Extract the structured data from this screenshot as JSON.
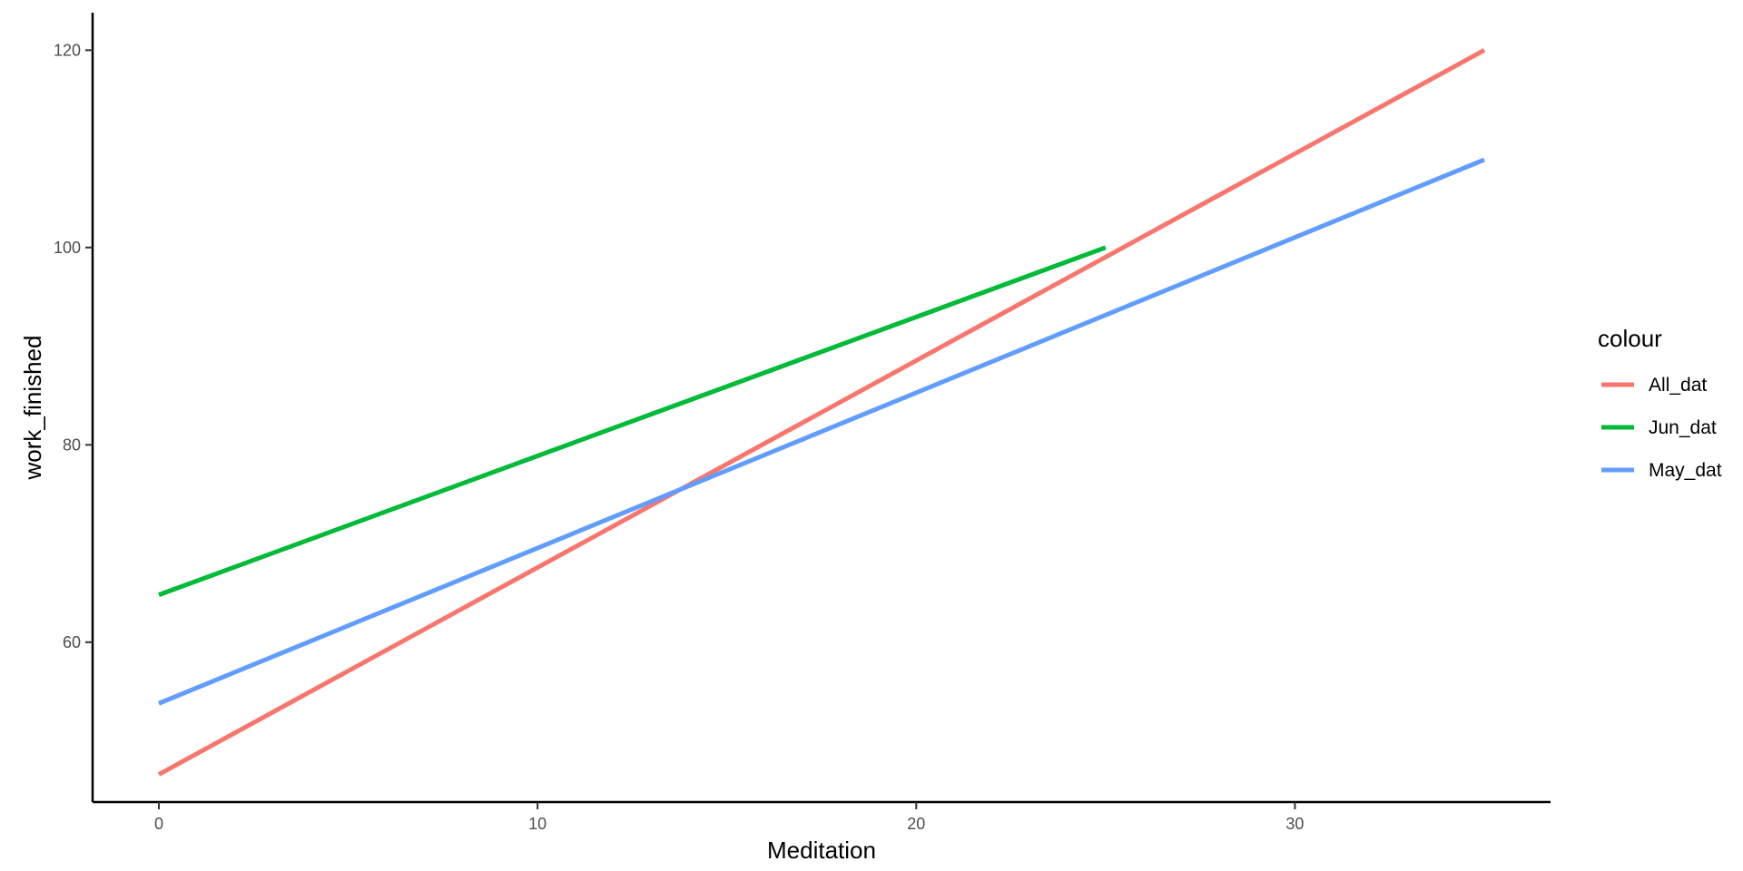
{
  "chart_data": {
    "type": "line",
    "xlabel": "Meditation",
    "ylabel": "work_finished",
    "xlim": [
      -1.75,
      36.75
    ],
    "ylim": [
      43.8,
      123.8
    ],
    "x_ticks": [
      0,
      10,
      20,
      30
    ],
    "y_ticks": [
      60,
      80,
      100,
      120
    ],
    "grid": false,
    "legend": {
      "title": "colour",
      "position": "right"
    },
    "series": [
      {
        "name": "All_dat",
        "color": "#F8766D",
        "x": [
          0,
          35
        ],
        "y": [
          46.6,
          120.0
        ]
      },
      {
        "name": "Jun_dat",
        "color": "#00BA38",
        "x": [
          0,
          25
        ],
        "y": [
          64.8,
          100.0
        ]
      },
      {
        "name": "May_dat",
        "color": "#619CFF",
        "x": [
          0,
          35
        ],
        "y": [
          53.8,
          108.9
        ]
      }
    ]
  }
}
